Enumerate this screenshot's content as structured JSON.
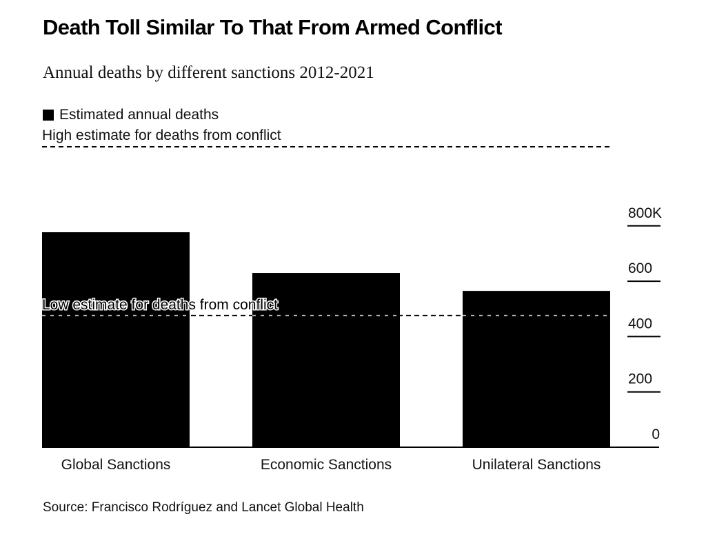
{
  "chart_data": {
    "type": "bar",
    "title": "Death Toll Similar To That From Armed Conflict",
    "subtitle": "Annual deaths by different sanctions 2012-2021",
    "xlabel": "",
    "ylabel": "",
    "categories": [
      "Global Sanctions",
      "Economic Sanctions",
      "Unilateral Sanctions"
    ],
    "series": [
      {
        "name": "Estimated annual deaths",
        "values": [
          777000,
          630000,
          565000
        ],
        "color": "#000000"
      }
    ],
    "reference_lines": [
      {
        "label": "High estimate for deaths from conflict",
        "value": 1086000,
        "style": "dashed"
      },
      {
        "label": "Low estimate for deaths from conflict",
        "value": 476000,
        "style": "dashed"
      }
    ],
    "ylim": [
      0,
      1100000
    ],
    "yticks": [
      0,
      200000,
      400000,
      600000,
      800000
    ],
    "ytick_labels": [
      "0",
      "200",
      "400",
      "600",
      "800K"
    ],
    "yaxis_side": "right",
    "grid": false,
    "legend_position": "top-left",
    "source": "Source: Francisco Rodríguez and Lancet Global Health"
  }
}
